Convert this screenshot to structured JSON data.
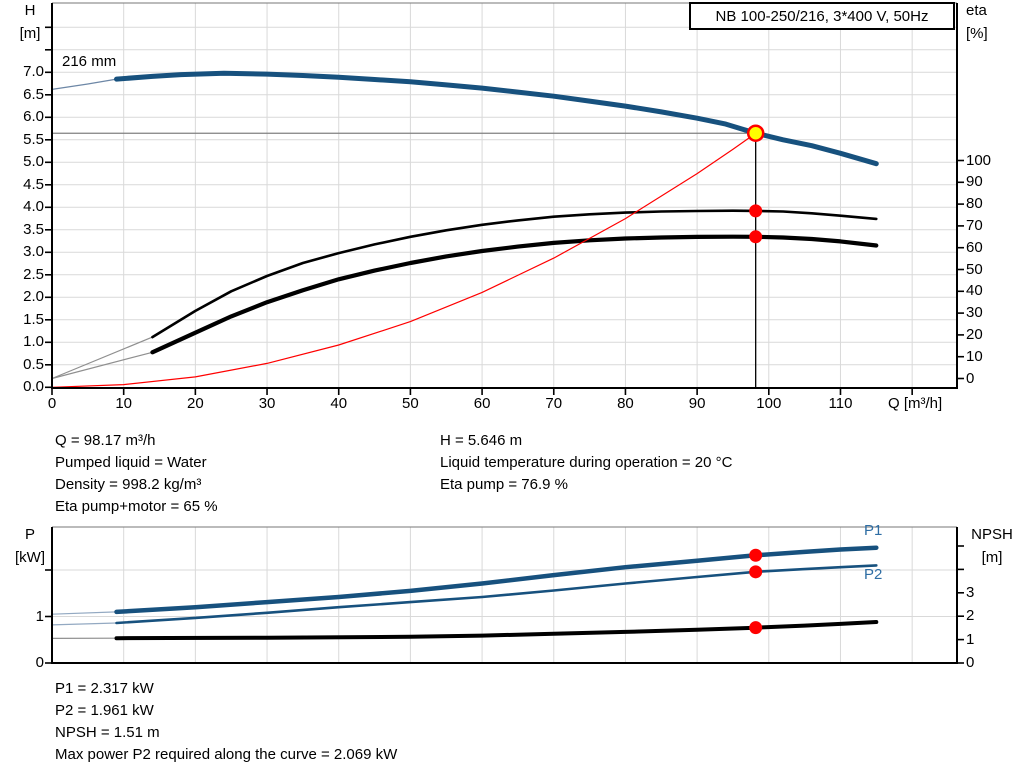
{
  "title_box": "NB 100-250/216, 3*400 V, 50Hz",
  "axis_titles": {
    "h1": "H",
    "h2": "[m]",
    "eta1": "eta",
    "eta2": "[%]",
    "q_unit": "Q [m³/h]",
    "p1": "P",
    "p2": "[kW]",
    "npsh1": "NPSH",
    "npsh2": "[m]"
  },
  "curve_labels": {
    "impeller": "216 mm",
    "p1": "P1",
    "p2": "P2"
  },
  "info_top_left": [
    "Q = 98.17 m³/h",
    "Pumped liquid = Water",
    "Density = 998.2 kg/m³",
    "Eta pump+motor = 65 %"
  ],
  "info_top_right": [
    "H = 5.646 m",
    "Liquid temperature during operation = 20 °C",
    "Eta pump = 76.9 %"
  ],
  "info_bottom": [
    "P1 = 2.317 kW",
    "P2 = 1.961 kW",
    "NPSH = 1.51 m",
    "Max power P2 required along the curve = 2.069 kW"
  ],
  "colors": {
    "curve_blue": "#17517e",
    "label_blue": "#2e6da4",
    "black": "#000000",
    "red": "#ff0000",
    "yellow": "#ffff00",
    "grid": "#d9d9d9",
    "leader_gray": "#8f8f8f",
    "leader_blue": "#93a9c2",
    "duty_line": "#808080",
    "border_top": "#777777"
  },
  "chart_data": [
    {
      "type": "line",
      "title": "QH / efficiency curves",
      "xlabel": "Q [m³/h]",
      "x_range": [
        0,
        126.3
      ],
      "h_range_labeled": [
        0,
        7
      ],
      "eta_range": [
        0,
        100
      ],
      "h_ticks": [
        {
          "v": 8,
          "t": ""
        },
        {
          "v": 7.5,
          "t": ""
        },
        {
          "v": 7,
          "t": "7.0"
        },
        {
          "v": 6.5,
          "t": "6.5"
        },
        {
          "v": 6,
          "t": "6.0"
        },
        {
          "v": 5.5,
          "t": "5.5"
        },
        {
          "v": 5,
          "t": "5.0"
        },
        {
          "v": 4.5,
          "t": "4.5"
        },
        {
          "v": 4,
          "t": "4.0"
        },
        {
          "v": 3.5,
          "t": "3.5"
        },
        {
          "v": 3,
          "t": "3.0"
        },
        {
          "v": 2.5,
          "t": "2.5"
        },
        {
          "v": 2,
          "t": "2.0"
        },
        {
          "v": 1.5,
          "t": "1.5"
        },
        {
          "v": 1,
          "t": "1.0"
        },
        {
          "v": 0.5,
          "t": "0.5"
        },
        {
          "v": 0,
          "t": "0.0"
        }
      ],
      "q_ticks": [
        {
          "v": 0,
          "t": "0"
        },
        {
          "v": 10,
          "t": "10"
        },
        {
          "v": 20,
          "t": "20"
        },
        {
          "v": 30,
          "t": "30"
        },
        {
          "v": 40,
          "t": "40"
        },
        {
          "v": 50,
          "t": "50"
        },
        {
          "v": 60,
          "t": "60"
        },
        {
          "v": 70,
          "t": "70"
        },
        {
          "v": 80,
          "t": "80"
        },
        {
          "v": 90,
          "t": "90"
        },
        {
          "v": 100,
          "t": "100"
        },
        {
          "v": 110,
          "t": "110"
        },
        {
          "v": 120,
          "t": ""
        }
      ],
      "eta_ticks": [
        {
          "v": 100,
          "t": "100"
        },
        {
          "v": 90,
          "t": "90"
        },
        {
          "v": 80,
          "t": "80"
        },
        {
          "v": 70,
          "t": "70"
        },
        {
          "v": 60,
          "t": "60"
        },
        {
          "v": 50,
          "t": "50"
        },
        {
          "v": 40,
          "t": "40"
        },
        {
          "v": 30,
          "t": "30"
        },
        {
          "v": 20,
          "t": "20"
        },
        {
          "v": 10,
          "t": "10"
        },
        {
          "v": 0,
          "t": "0"
        }
      ],
      "series": [
        {
          "name": "head-216mm-leader",
          "axis": "H",
          "width": 1.3,
          "color": "#6d87a6",
          "leader": true,
          "points": [
            [
              0,
              6.62
            ],
            [
              5,
              6.74
            ],
            [
              9,
              6.85
            ]
          ]
        },
        {
          "name": "head-216mm",
          "axis": "H",
          "width": 5,
          "color": "#17517e",
          "points": [
            [
              9,
              6.85
            ],
            [
              14,
              6.91
            ],
            [
              18,
              6.95
            ],
            [
              24,
              6.98
            ],
            [
              30,
              6.96
            ],
            [
              35,
              6.93
            ],
            [
              40,
              6.89
            ],
            [
              45,
              6.84
            ],
            [
              50,
              6.79
            ],
            [
              55,
              6.72
            ],
            [
              60,
              6.65
            ],
            [
              65,
              6.56
            ],
            [
              70,
              6.47
            ],
            [
              75,
              6.36
            ],
            [
              80,
              6.25
            ],
            [
              85,
              6.12
            ],
            [
              90,
              5.98
            ],
            [
              94,
              5.85
            ],
            [
              98.17,
              5.646
            ],
            [
              102,
              5.5
            ],
            [
              106,
              5.37
            ],
            [
              110,
              5.2
            ],
            [
              115,
              4.97
            ]
          ]
        },
        {
          "name": "eta-pump-leader",
          "axis": "eta",
          "width": 1.2,
          "color": "#8f8f8f",
          "leader": true,
          "points": [
            [
              0,
              0
            ],
            [
              14,
              19
            ]
          ]
        },
        {
          "name": "eta-pump",
          "axis": "eta",
          "width": 2.6,
          "color": "#000000",
          "points": [
            [
              14,
              19
            ],
            [
              20,
              31
            ],
            [
              25,
              40
            ],
            [
              30,
              47
            ],
            [
              35,
              53
            ],
            [
              40,
              57.5
            ],
            [
              45,
              61.5
            ],
            [
              50,
              65
            ],
            [
              55,
              68
            ],
            [
              60,
              70.5
            ],
            [
              65,
              72.5
            ],
            [
              70,
              74.2
            ],
            [
              75,
              75.3
            ],
            [
              80,
              76.1
            ],
            [
              85,
              76.6
            ],
            [
              90,
              76.85
            ],
            [
              95,
              76.95
            ],
            [
              98.17,
              76.9
            ],
            [
              102,
              76.6
            ],
            [
              106,
              75.8
            ],
            [
              110,
              74.7
            ],
            [
              115,
              73.2
            ]
          ]
        },
        {
          "name": "eta-pump-motor-leader",
          "axis": "eta",
          "width": 1.2,
          "color": "#8f8f8f",
          "leader": true,
          "points": [
            [
              0,
              0
            ],
            [
              14,
              12
            ]
          ]
        },
        {
          "name": "eta-pump-motor",
          "axis": "eta",
          "width": 4.2,
          "color": "#000000",
          "points": [
            [
              14,
              12
            ],
            [
              20,
              21
            ],
            [
              25,
              28.5
            ],
            [
              30,
              35
            ],
            [
              35,
              40.5
            ],
            [
              40,
              45.5
            ],
            [
              45,
              49.5
            ],
            [
              50,
              53
            ],
            [
              55,
              56
            ],
            [
              60,
              58.5
            ],
            [
              65,
              60.5
            ],
            [
              70,
              62.2
            ],
            [
              75,
              63.4
            ],
            [
              80,
              64.2
            ],
            [
              85,
              64.7
            ],
            [
              90,
              64.95
            ],
            [
              95,
              65.05
            ],
            [
              98.17,
              65
            ],
            [
              102,
              64.7
            ],
            [
              106,
              64
            ],
            [
              110,
              62.9
            ],
            [
              115,
              61
            ]
          ]
        },
        {
          "name": "system-curve",
          "axis": "H",
          "width": 1.2,
          "color": "#ff0000",
          "points": [
            [
              0,
              0
            ],
            [
              10,
              0.06
            ],
            [
              20,
              0.23
            ],
            [
              30,
              0.53
            ],
            [
              40,
              0.94
            ],
            [
              50,
              1.46
            ],
            [
              60,
              2.11
            ],
            [
              70,
              2.87
            ],
            [
              80,
              3.75
            ],
            [
              90,
              4.75
            ],
            [
              95,
              5.29
            ],
            [
              98.17,
              5.646
            ]
          ]
        }
      ],
      "duty_point": {
        "q": 98.17,
        "h": 5.646
      },
      "markers": [
        {
          "axis": "eta",
          "q": 98.17,
          "v": 76.9
        },
        {
          "axis": "eta",
          "q": 98.17,
          "v": 65
        }
      ]
    },
    {
      "type": "line",
      "title": "Power / NPSH curves",
      "p_range_labeled": [
        0,
        1
      ],
      "npsh_range_labeled": [
        0,
        3
      ],
      "p_ticks": [
        {
          "v": 2,
          "t": ""
        },
        {
          "v": 1,
          "t": "1"
        },
        {
          "v": 0,
          "t": "0"
        }
      ],
      "npsh_ticks": [
        {
          "v": 5,
          "t": ""
        },
        {
          "v": 4,
          "t": ""
        },
        {
          "v": 3,
          "t": "3"
        },
        {
          "v": 2,
          "t": "2"
        },
        {
          "v": 1,
          "t": "1"
        },
        {
          "v": 0,
          "t": "0"
        }
      ],
      "series": [
        {
          "name": "p1-leader",
          "axis": "P",
          "width": 1.2,
          "color": "#93a9c2",
          "leader": true,
          "points": [
            [
              0,
              1.05
            ],
            [
              9,
              1.1
            ]
          ]
        },
        {
          "name": "p1",
          "axis": "P",
          "width": 4.5,
          "color": "#17517e",
          "points": [
            [
              9,
              1.1
            ],
            [
              20,
              1.2
            ],
            [
              30,
              1.31
            ],
            [
              40,
              1.42
            ],
            [
              50,
              1.55
            ],
            [
              60,
              1.71
            ],
            [
              70,
              1.89
            ],
            [
              80,
              2.06
            ],
            [
              90,
              2.2
            ],
            [
              98.17,
              2.317
            ],
            [
              105,
              2.39
            ],
            [
              110,
              2.44
            ],
            [
              115,
              2.48
            ]
          ]
        },
        {
          "name": "p2-leader",
          "axis": "P",
          "width": 1.2,
          "color": "#93a9c2",
          "leader": true,
          "points": [
            [
              0,
              0.82
            ],
            [
              9,
              0.86
            ]
          ]
        },
        {
          "name": "p2",
          "axis": "P",
          "width": 2.6,
          "color": "#17517e",
          "points": [
            [
              9,
              0.86
            ],
            [
              20,
              0.97
            ],
            [
              30,
              1.08
            ],
            [
              40,
              1.2
            ],
            [
              50,
              1.31
            ],
            [
              60,
              1.42
            ],
            [
              70,
              1.56
            ],
            [
              80,
              1.71
            ],
            [
              90,
              1.85
            ],
            [
              98.17,
              1.961
            ],
            [
              105,
              2.02
            ],
            [
              110,
              2.06
            ],
            [
              115,
              2.1
            ]
          ]
        },
        {
          "name": "npsh-leader",
          "axis": "NPSH",
          "width": 1.2,
          "color": "#8f8f8f",
          "leader": true,
          "points": [
            [
              0,
              1.05
            ],
            [
              9,
              1.06
            ]
          ]
        },
        {
          "name": "npsh",
          "axis": "NPSH",
          "width": 4,
          "color": "#000000",
          "points": [
            [
              9,
              1.06
            ],
            [
              30,
              1.08
            ],
            [
              50,
              1.12
            ],
            [
              60,
              1.17
            ],
            [
              70,
              1.25
            ],
            [
              80,
              1.33
            ],
            [
              90,
              1.42
            ],
            [
              98.17,
              1.51
            ],
            [
              105,
              1.6
            ],
            [
              110,
              1.67
            ],
            [
              115,
              1.75
            ]
          ]
        }
      ],
      "markers": [
        {
          "axis": "P",
          "q": 98.17,
          "v": 2.317
        },
        {
          "axis": "P",
          "q": 98.17,
          "v": 1.961
        },
        {
          "axis": "NPSH",
          "q": 98.17,
          "v": 1.51
        }
      ]
    }
  ]
}
